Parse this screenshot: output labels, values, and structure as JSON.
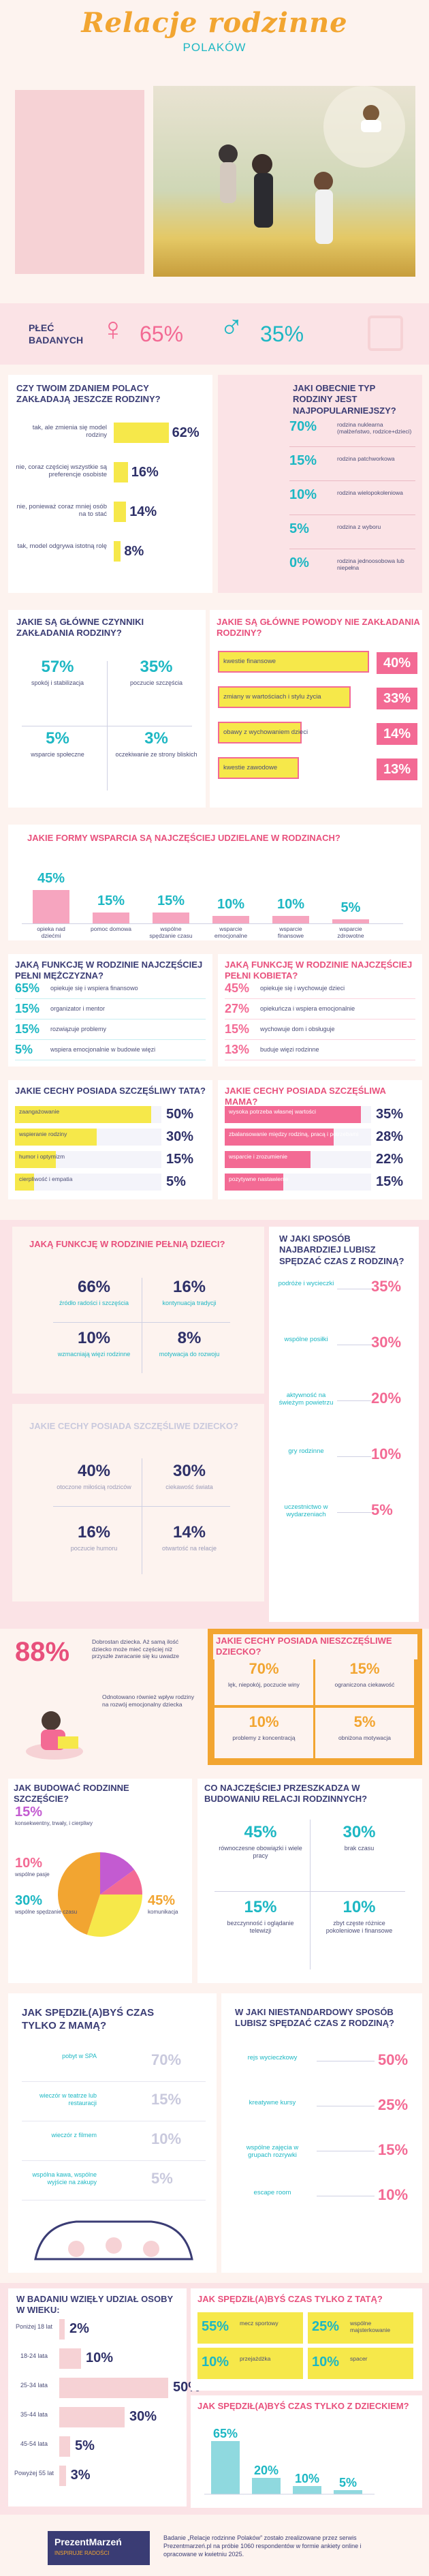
{
  "header": {
    "title": "Relacje rodzinne",
    "subtitle": "POLAKÓW"
  },
  "gender": {
    "label": "PŁEĆ BADANYCH",
    "female_pct": "65%",
    "male_pct": "35%"
  },
  "s1": {
    "question": "CZY TWOIM ZDANIEM POLACY ZAKŁADAJĄ JESZCZE RODZINY?",
    "items": [
      {
        "label": "tak, ale zmienia się model rodziny",
        "value": "62%",
        "v": 62
      },
      {
        "label": "nie, coraz częściej wszystkie są preferencje osobiste",
        "value": "16%",
        "v": 16
      },
      {
        "label": "nie, ponieważ coraz mniej osób na to stać",
        "value": "14%",
        "v": 14
      },
      {
        "label": "tak, model odgrywa istotną rolę",
        "value": "8%",
        "v": 8
      }
    ]
  },
  "s2": {
    "question": "JAKI OBECNIE TYP RODZINY JEST NAJPOPULARNIEJSZY?",
    "items": [
      {
        "value": "70%",
        "label": "rodzina nuklearna (małżeństwo, rodzice+dzieci)"
      },
      {
        "value": "15%",
        "label": "rodzina patchworkowa"
      },
      {
        "value": "10%",
        "label": "rodzina wielopokoleniowa"
      },
      {
        "value": "5%",
        "label": "rodzina z wyboru"
      },
      {
        "value": "0%",
        "label": "rodzina jednoosobowa lub niepełna"
      }
    ]
  },
  "s3": {
    "question": "JAKIE SĄ GŁÓWNE CZYNNIKI ZAKŁADANIA RODZINY?",
    "cells": [
      {
        "value": "57%",
        "label": "spokój i stabilizacja"
      },
      {
        "value": "35%",
        "label": "poczucie szczęścia"
      },
      {
        "value": "5%",
        "label": "wsparcie społeczne"
      },
      {
        "value": "3%",
        "label": "oczekiwanie ze strony bliskich"
      }
    ]
  },
  "s4": {
    "question": "JAKIE SĄ GŁÓWNE POWODY NIE ZAKŁADANIA RODZINY?",
    "items": [
      {
        "label": "kwestie finansowe",
        "value": "40%",
        "v": 40
      },
      {
        "label": "zmiany w wartościach i stylu życia",
        "value": "33%",
        "v": 33
      },
      {
        "label": "obawy z wychowaniem dzieci",
        "value": "14%",
        "v": 14
      },
      {
        "label": "kwestie zawodowe",
        "value": "13%",
        "v": 13
      }
    ]
  },
  "s5": {
    "question": "JAKIE FORMY WSPARCIA SĄ NAJCZĘŚCIEJ UDZIELANE W RODZINACH?",
    "items": [
      {
        "value": "45%",
        "v": 45,
        "label": "opieka nad dziećmi"
      },
      {
        "value": "15%",
        "v": 15,
        "label": "pomoc domowa"
      },
      {
        "value": "15%",
        "v": 15,
        "label": "wspólne spędzanie czasu"
      },
      {
        "value": "10%",
        "v": 10,
        "label": "wsparcie emocjonalne"
      },
      {
        "value": "10%",
        "v": 10,
        "label": "wsparcie finansowe"
      },
      {
        "value": "5%",
        "v": 5,
        "label": "wsparcie zdrowotne"
      }
    ]
  },
  "s6": {
    "question": "JAKĄ FUNKCJĘ W RODZINIE NAJCZĘŚCIEJ PEŁNI MĘŻCZYZNA?",
    "items": [
      {
        "value": "65%",
        "label": "opiekuje się i wspiera finansowo"
      },
      {
        "value": "15%",
        "label": "organizator i mentor"
      },
      {
        "value": "15%",
        "label": "rozwiązuje problemy"
      },
      {
        "value": "5%",
        "label": "wspiera emocjonalnie w budowie więzi"
      }
    ]
  },
  "s7": {
    "question": "JAKĄ FUNKCJĘ W RODZINIE NAJCZĘŚCIEJ PEŁNI KOBIETA?",
    "items": [
      {
        "value": "45%",
        "label": "opiekuje się i wychowuje dzieci"
      },
      {
        "value": "27%",
        "label": "opiekuńcza i wspiera emocjonalnie"
      },
      {
        "value": "15%",
        "label": "wychowuje dom i obsługuje"
      },
      {
        "value": "13%",
        "label": "buduje więzi rodzinne"
      }
    ]
  },
  "s8": {
    "question": "JAKIE CECHY POSIADA SZCZĘŚLIWY TATA?",
    "items": [
      {
        "label": "zaangażowanie",
        "value": "50%",
        "v": 50
      },
      {
        "label": "wspieranie rodziny",
        "value": "30%",
        "v": 30
      },
      {
        "label": "humor i optymizm",
        "value": "15%",
        "v": 15
      },
      {
        "label": "cierpliwość i empatia",
        "value": "5%",
        "v": 5
      }
    ]
  },
  "s9": {
    "question": "JAKIE CECHY POSIADA SZCZĘŚLIWA MAMA?",
    "items": [
      {
        "label": "wysoka potrzeba własnej wartości",
        "value": "35%",
        "v": 35
      },
      {
        "label": "zbalansowanie między rodziną, pracą i potrzebami",
        "value": "28%",
        "v": 28
      },
      {
        "label": "wsparcie i zrozumienie",
        "value": "22%",
        "v": 22
      },
      {
        "label": "pozytywne nastawienie",
        "value": "15%",
        "v": 15
      }
    ]
  },
  "s10": {
    "question": "JAKĄ FUNKCJĘ W RODZINIE PEŁNIĄ DZIECI?",
    "cells": [
      {
        "value": "66%",
        "label": "źródło radości i szczęścia"
      },
      {
        "value": "16%",
        "label": "kontynuacja tradycji"
      },
      {
        "value": "10%",
        "label": "wzmacniają więzi rodzinne"
      },
      {
        "value": "8%",
        "label": "motywacja do rozwoju"
      }
    ]
  },
  "s11": {
    "question": "W JAKI SPOSÓB NAJBARDZIEJ LUBISZ SPĘDZAĆ CZAS Z RODZINĄ?",
    "items": [
      {
        "label": "podróże i wycieczki",
        "value": "35%"
      },
      {
        "label": "wspólne posiłki",
        "value": "30%"
      },
      {
        "label": "aktywność na świeżym powietrzu",
        "value": "20%"
      },
      {
        "label": "gry rodzinne",
        "value": "10%"
      },
      {
        "label": "uczestnictwo w wydarzeniach",
        "value": "5%"
      }
    ]
  },
  "s12": {
    "question": "JAKIE CECHY POSIADA SZCZĘŚLIWE DZIECKO?",
    "cells": [
      {
        "value": "40%",
        "label": "otoczone miłością rodziców"
      },
      {
        "value": "30%",
        "label": "ciekawość świata"
      },
      {
        "value": "16%",
        "label": "poczucie humoru"
      },
      {
        "value": "14%",
        "label": "otwartość na relacje"
      }
    ]
  },
  "s13": {
    "big": "88%",
    "text1": "Dobrostan dziecka. Aż samą ilość dziecko może mieć częściej niż przyszłe zwracanie się ku uwadze",
    "text2": "Odnotowano również wpływ rodziny na rozwój emocjonalny dziecka"
  },
  "s14": {
    "question": "JAKIE CECHY POSIADA NIESZCZĘŚLIWE DZIECKO?",
    "cells": [
      {
        "value": "70%",
        "label": "lęk, niepokój, poczucie winy"
      },
      {
        "value": "15%",
        "label": "ograniczona ciekawość"
      },
      {
        "value": "10%",
        "label": "problemy z koncentracją"
      },
      {
        "value": "5%",
        "label": "obniżona motywacja"
      }
    ]
  },
  "s15": {
    "question": "JAK BUDOWAĆ RODZINNE SZCZĘŚCIE?",
    "items": [
      {
        "value": "15%",
        "label": "konsekwentny, trwały, i cierpliwy",
        "v": 15
      },
      {
        "value": "10%",
        "label": "wspólne pasje",
        "v": 10
      },
      {
        "value": "30%",
        "label": "wspólne spędzanie czasu",
        "v": 30
      },
      {
        "value": "45%",
        "label": "komunikacja",
        "v": 45
      }
    ],
    "colors": [
      "#c35bd1",
      "#f36a94",
      "#f6e84a",
      "#f2a531"
    ]
  },
  "s16": {
    "question": "CO NAJCZĘŚCIEJ PRZESZKADZA W BUDOWANIU RELACJI RODZINNYCH?",
    "cells": [
      {
        "value": "45%",
        "label": "równoczesne obowiązki i wiele pracy"
      },
      {
        "value": "30%",
        "label": "brak czasu"
      },
      {
        "value": "15%",
        "label": "bezczynność i oglądanie telewizji"
      },
      {
        "value": "10%",
        "label": "zbyt częste różnice pokoleniowe i finansowe"
      }
    ]
  },
  "s17": {
    "question": "JAK SPĘDZIŁ(A)BYŚ CZAS TYLKO Z MAMĄ?",
    "items": [
      {
        "label": "pobyt w SPA",
        "value": "70%"
      },
      {
        "label": "wieczór w teatrze lub restauracji",
        "value": "15%"
      },
      {
        "label": "wieczór z filmem",
        "value": "10%"
      },
      {
        "label": "wspólna kawa, wspólne wyjście na zakupy",
        "value": "5%"
      }
    ]
  },
  "s18": {
    "question": "W JAKI NIESTANDARDOWY SPOSÓB LUBISZ SPĘDZAĆ CZAS Z RODZINĄ?",
    "items": [
      {
        "label": "rejs wycieczkowy",
        "value": "50%"
      },
      {
        "label": "kreatywne kursy",
        "value": "25%"
      },
      {
        "label": "wspólne zajęcia w grupach rozrywki",
        "value": "15%"
      },
      {
        "label": "escape room",
        "value": "10%"
      }
    ]
  },
  "s19": {
    "question": "W BADANIU WZIĘŁY UDZIAŁ OSOBY W WIEKU:",
    "items": [
      {
        "label": "Poniżej 18 lat",
        "value": "2%",
        "v": 2
      },
      {
        "label": "18-24 lata",
        "value": "10%",
        "v": 10
      },
      {
        "label": "25-34 lata",
        "value": "50%",
        "v": 50
      },
      {
        "label": "35-44 lata",
        "value": "30%",
        "v": 30
      },
      {
        "label": "45-54 lata",
        "value": "5%",
        "v": 5
      },
      {
        "label": "Powyżej 55 lat",
        "value": "3%",
        "v": 3
      }
    ]
  },
  "s20": {
    "question": "JAK SPĘDZIŁ(A)BYŚ CZAS TYLKO Z TATĄ?",
    "cells": [
      {
        "value": "55%",
        "label": "mecz sportowy"
      },
      {
        "value": "25%",
        "label": "wspólne majsterkowanie"
      },
      {
        "value": "10%",
        "label": "przejażdżka"
      },
      {
        "value": "10%",
        "label": "spacer"
      }
    ]
  },
  "s21": {
    "question": "JAK SPĘDZIŁ(A)BYŚ CZAS TYLKO Z DZIECKIEM?",
    "items": [
      {
        "value": "65%",
        "v": 65
      },
      {
        "value": "20%",
        "v": 20
      },
      {
        "value": "10%",
        "v": 10
      },
      {
        "value": "5%",
        "v": 5
      }
    ]
  },
  "footer": {
    "brand": "PrezentMarzeń",
    "brand_sub": "INSPIRUJE RADOŚCI",
    "note": "Badanie „Relacje rodzinne Polaków” zostało zrealizowane przez serwis Prezentmarzeń.pl na próbie 1060 respondentów w formie ankiety online i opracowane w kwietniu 2025."
  }
}
